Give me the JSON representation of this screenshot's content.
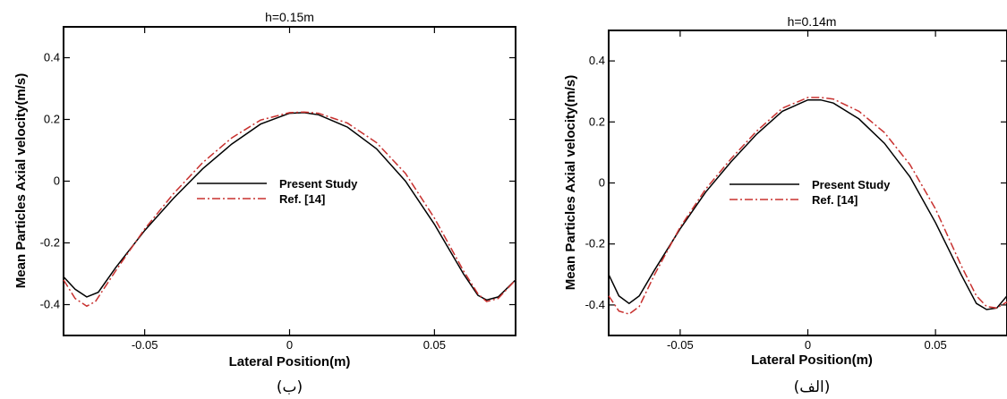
{
  "chart_data": [
    {
      "type": "line",
      "panel": "left",
      "title": "h=0.15m",
      "caption": "(ب)",
      "xlabel": "Lateral Position(m)",
      "ylabel": "Mean Particles Axial velocity(m/s)",
      "xlim": [
        -0.078,
        0.078
      ],
      "ylim": [
        -0.5,
        0.5
      ],
      "xticks": [
        -0.05,
        0,
        0.05
      ],
      "xtick_labels": [
        "-0.05",
        "0",
        "0.05"
      ],
      "yticks": [
        0.4,
        0.2,
        0,
        -0.2,
        -0.4
      ],
      "ytick_labels": [
        "0.4",
        "0.2",
        "0",
        "-0.2",
        "-0.4"
      ],
      "legend": {
        "position": "center"
      },
      "grid": false,
      "series": [
        {
          "name": "Present Study",
          "color": "#000000",
          "style": "solid",
          "x": [
            -0.078,
            -0.074,
            -0.07,
            -0.066,
            -0.06,
            -0.05,
            -0.04,
            -0.03,
            -0.02,
            -0.01,
            0,
            0.005,
            0.01,
            0.02,
            0.03,
            0.04,
            0.05,
            0.06,
            0.065,
            0.068,
            0.072,
            0.078
          ],
          "y": [
            -0.31,
            -0.35,
            -0.375,
            -0.36,
            -0.28,
            -0.16,
            -0.055,
            0.04,
            0.12,
            0.185,
            0.22,
            0.222,
            0.215,
            0.175,
            0.105,
            0.0,
            -0.14,
            -0.3,
            -0.37,
            -0.385,
            -0.375,
            -0.32
          ]
        },
        {
          "name": "Ref. [14]",
          "color": "#c8312f",
          "style": "dashdot",
          "x": [
            -0.078,
            -0.074,
            -0.07,
            -0.067,
            -0.06,
            -0.05,
            -0.04,
            -0.03,
            -0.02,
            -0.01,
            0,
            0.005,
            0.01,
            0.02,
            0.03,
            0.04,
            0.05,
            0.06,
            0.065,
            0.068,
            0.072,
            0.078
          ],
          "y": [
            -0.32,
            -0.38,
            -0.405,
            -0.39,
            -0.29,
            -0.155,
            -0.04,
            0.06,
            0.14,
            0.198,
            0.222,
            0.224,
            0.22,
            0.188,
            0.125,
            0.025,
            -0.12,
            -0.29,
            -0.365,
            -0.39,
            -0.38,
            -0.32
          ]
        }
      ]
    },
    {
      "type": "line",
      "panel": "right",
      "title": "h=0.14m",
      "caption": "(الف)",
      "xlabel": "Lateral Position(m)",
      "ylabel": "Mean Particles Axial velocity(m/s)",
      "xlim": [
        -0.078,
        0.078
      ],
      "ylim": [
        -0.5,
        0.5
      ],
      "xticks": [
        -0.05,
        0,
        0.05
      ],
      "xtick_labels": [
        "-0.05",
        "0",
        "0.05"
      ],
      "yticks": [
        0.4,
        0.2,
        0,
        -0.2,
        -0.4
      ],
      "ytick_labels": [
        "0.4",
        "0.2",
        "0",
        "-0.2",
        "-0.4"
      ],
      "legend": {
        "position": "center"
      },
      "grid": false,
      "series": [
        {
          "name": "Present Study",
          "color": "#000000",
          "style": "solid",
          "x": [
            -0.078,
            -0.074,
            -0.07,
            -0.066,
            -0.06,
            -0.05,
            -0.04,
            -0.03,
            -0.02,
            -0.01,
            0,
            0.005,
            0.01,
            0.02,
            0.03,
            0.04,
            0.05,
            0.06,
            0.066,
            0.07,
            0.074,
            0.078
          ],
          "y": [
            -0.3,
            -0.37,
            -0.395,
            -0.37,
            -0.285,
            -0.15,
            -0.03,
            0.07,
            0.16,
            0.235,
            0.272,
            0.272,
            0.262,
            0.21,
            0.13,
            0.02,
            -0.13,
            -0.3,
            -0.395,
            -0.415,
            -0.41,
            -0.37
          ]
        },
        {
          "name": "Ref. [14]",
          "color": "#c8312f",
          "style": "dashdot",
          "x": [
            -0.078,
            -0.074,
            -0.07,
            -0.066,
            -0.06,
            -0.05,
            -0.04,
            -0.03,
            -0.02,
            -0.01,
            0,
            0.005,
            0.01,
            0.02,
            0.03,
            0.04,
            0.05,
            0.06,
            0.066,
            0.07,
            0.074,
            0.078
          ],
          "y": [
            -0.37,
            -0.42,
            -0.43,
            -0.405,
            -0.3,
            -0.145,
            -0.02,
            0.08,
            0.17,
            0.245,
            0.28,
            0.28,
            0.275,
            0.235,
            0.165,
            0.06,
            -0.085,
            -0.27,
            -0.37,
            -0.405,
            -0.41,
            -0.39
          ]
        }
      ]
    }
  ]
}
